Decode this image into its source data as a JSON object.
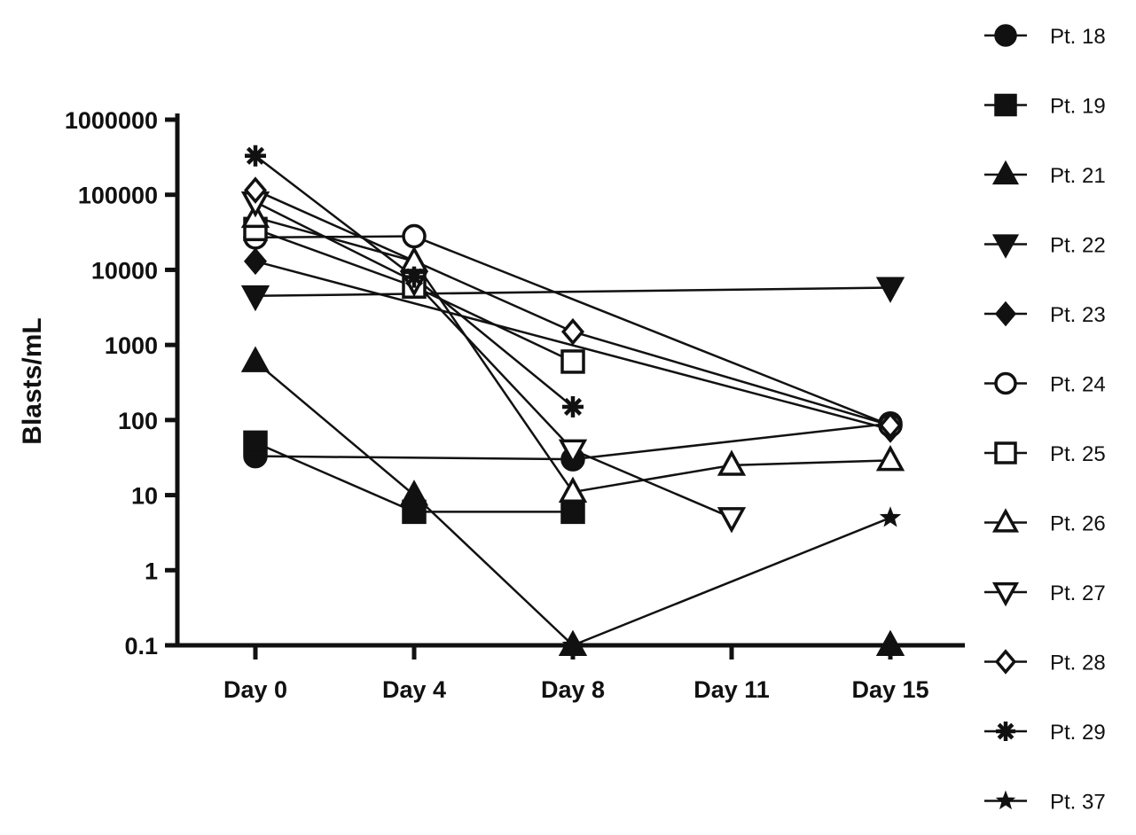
{
  "chart_data": {
    "type": "line",
    "title": "",
    "xlabel": "",
    "ylabel": "Blasts/mL",
    "y_scale": "log",
    "ylim": [
      0.1,
      1000000
    ],
    "y_ticks": [
      0.1,
      1,
      10,
      100,
      1000,
      10000,
      100000,
      1000000
    ],
    "y_tick_labels": [
      "0.1",
      "1",
      "10",
      "100",
      "1000",
      "10000",
      "100000",
      "1000000"
    ],
    "categories": [
      "Day 0",
      "Day 4",
      "Day 8",
      "Day 11",
      "Day 15"
    ],
    "legend_position": "right",
    "series": [
      {
        "name": "Pt. 18",
        "marker": "circle-filled",
        "points": [
          {
            "x": "Day 0",
            "y": 33
          },
          {
            "x": "Day 8",
            "y": 30
          },
          {
            "x": "Day 15",
            "y": 90
          }
        ]
      },
      {
        "name": "Pt. 19",
        "marker": "square-filled",
        "points": [
          {
            "x": "Day 0",
            "y": 50
          },
          {
            "x": "Day 4",
            "y": 6
          },
          {
            "x": "Day 8",
            "y": 6
          }
        ]
      },
      {
        "name": "Pt. 21",
        "marker": "triangle-up-filled",
        "points": [
          {
            "x": "Day 0",
            "y": 600
          },
          {
            "x": "Day 4",
            "y": 10
          },
          {
            "x": "Day 8",
            "y": 0.1
          },
          {
            "x": "Day 15",
            "y": 0.1
          }
        ]
      },
      {
        "name": "Pt. 22",
        "marker": "triangle-down-filled",
        "points": [
          {
            "x": "Day 0",
            "y": 4500
          },
          {
            "x": "Day 15",
            "y": 5800
          }
        ]
      },
      {
        "name": "Pt. 23",
        "marker": "diamond-filled",
        "points": [
          {
            "x": "Day 0",
            "y": 13000
          },
          {
            "x": "Day 15",
            "y": 75
          }
        ]
      },
      {
        "name": "Pt. 24",
        "marker": "circle-open",
        "points": [
          {
            "x": "Day 0",
            "y": 27000
          },
          {
            "x": "Day 4",
            "y": 28000
          },
          {
            "x": "Day 15",
            "y": 85
          }
        ]
      },
      {
        "name": "Pt. 25",
        "marker": "square-open",
        "points": [
          {
            "x": "Day 0",
            "y": 35000
          },
          {
            "x": "Day 4",
            "y": 6000
          },
          {
            "x": "Day 8",
            "y": 600
          }
        ]
      },
      {
        "name": "Pt. 26",
        "marker": "triangle-up-open",
        "points": [
          {
            "x": "Day 0",
            "y": 50000
          },
          {
            "x": "Day 4",
            "y": 13000
          },
          {
            "x": "Day 8",
            "y": 11
          },
          {
            "x": "Day 11",
            "y": 25
          },
          {
            "x": "Day 15",
            "y": 29
          }
        ]
      },
      {
        "name": "Pt. 27",
        "marker": "triangle-down-open",
        "points": [
          {
            "x": "Day 0",
            "y": 80000
          },
          {
            "x": "Day 4",
            "y": 7000
          },
          {
            "x": "Day 8",
            "y": 40
          },
          {
            "x": "Day 11",
            "y": 5
          }
        ]
      },
      {
        "name": "Pt. 28",
        "marker": "diamond-open",
        "points": [
          {
            "x": "Day 0",
            "y": 115000
          },
          {
            "x": "Day 8",
            "y": 1500
          },
          {
            "x": "Day 15",
            "y": 85
          }
        ]
      },
      {
        "name": "Pt. 29",
        "marker": "asterisk",
        "points": [
          {
            "x": "Day 0",
            "y": 330000
          },
          {
            "x": "Day 4",
            "y": 8000
          },
          {
            "x": "Day 8",
            "y": 150
          }
        ]
      },
      {
        "name": "Pt. 37",
        "marker": "star",
        "points": [
          {
            "x": "Day 8",
            "y": 0.1
          },
          {
            "x": "Day 15",
            "y": 5
          }
        ]
      }
    ]
  }
}
